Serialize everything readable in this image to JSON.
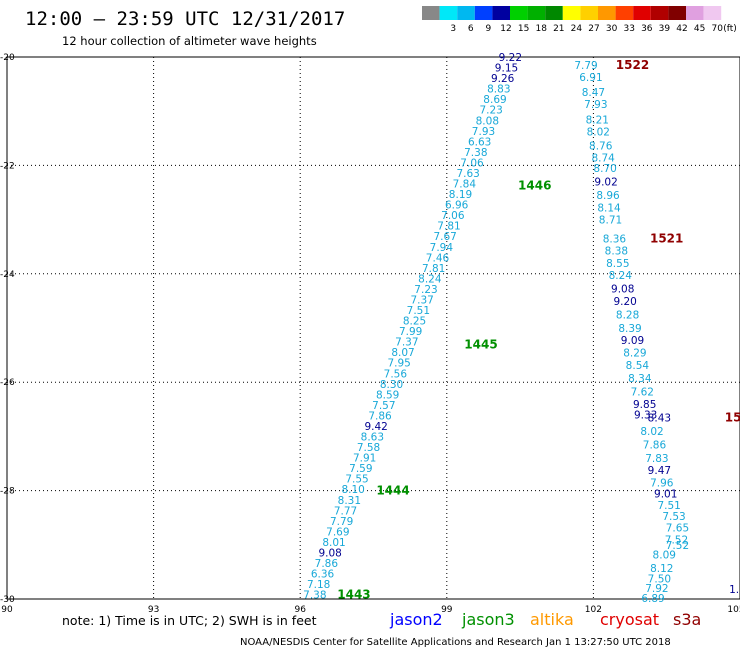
{
  "header": {
    "title": "12:00 – 23:59 UTC 12/31/2017",
    "subtitle": "12 hour collection of altimeter wave heights"
  },
  "legend": {
    "unit": "(ft)",
    "bins": [
      {
        "label": "",
        "color": "#888888"
      },
      {
        "label": "3",
        "color": "#00e8f8"
      },
      {
        "label": "6",
        "color": "#00b8f0"
      },
      {
        "label": "9",
        "color": "#0040ff"
      },
      {
        "label": "12",
        "color": "#0000a0"
      },
      {
        "label": "15",
        "color": "#00d000"
      },
      {
        "label": "18",
        "color": "#00b000"
      },
      {
        "label": "21",
        "color": "#008800"
      },
      {
        "label": "24",
        "color": "#ffff00"
      },
      {
        "label": "27",
        "color": "#ffd000"
      },
      {
        "label": "30",
        "color": "#ff9800"
      },
      {
        "label": "33",
        "color": "#ff4000"
      },
      {
        "label": "36",
        "color": "#e00000"
      },
      {
        "label": "39",
        "color": "#b00000"
      },
      {
        "label": "42",
        "color": "#800000"
      },
      {
        "label": "45",
        "color": "#e0a0e0"
      },
      {
        "label": "70",
        "color": "#f0c8f0"
      }
    ]
  },
  "footer": {
    "note": "note:  1) Time is in UTC; 2) SWH is in feet",
    "satellites": [
      {
        "name": "jason2",
        "color": "#0000ff"
      },
      {
        "name": "jason3",
        "color": "#009000"
      },
      {
        "name": "altika",
        "color": "#ff9900"
      },
      {
        "name": "cryosat",
        "color": "#e00000"
      },
      {
        "name": "s3a",
        "color": "#900000"
      }
    ],
    "credit": "NOAA/NESDIS Center for Satellite Applications and Research    Jan  1 13:27:50 UTC 2018"
  },
  "chart_data": {
    "type": "scatter",
    "xlim": [
      90,
      105
    ],
    "ylim": [
      -30,
      -20
    ],
    "x_ticks": [
      90,
      93,
      96,
      99,
      102,
      105
    ],
    "y_ticks": [
      -20,
      -22,
      -24,
      -26,
      -28,
      -30
    ],
    "x_tick_labels": [
      "90",
      "93",
      "96",
      "99",
      "102",
      "105"
    ],
    "y_tick_labels": [
      "-20",
      "-22",
      "-24",
      "-26",
      "-28",
      "-30"
    ],
    "grid": true,
    "colors": {
      "cyan": "#18a8d8",
      "navy": "#000090"
    },
    "tracks": [
      {
        "satellite": "jason3",
        "pass_labels": [
          {
            "text": "1446",
            "lon": 100.8,
            "lat": -22.37
          },
          {
            "text": "1445",
            "lon": 99.7,
            "lat": -25.3
          },
          {
            "text": "1444",
            "lon": 97.9,
            "lat": -28.0
          },
          {
            "text": "1443",
            "lon": 97.1,
            "lat": -29.92
          }
        ],
        "start": {
          "lon": 100.3,
          "lat": -20.0
        },
        "end": {
          "lon": 96.3,
          "lat": -29.92
        },
        "values": [
          "9.22",
          "9.15",
          "9.26",
          "8.83",
          "8.69",
          "7.23",
          "8.08",
          "7.93",
          "6.63",
          "7.38",
          "7.06",
          "7.63",
          "7.84",
          "8.19",
          "6.96",
          "7.06",
          "7.81",
          "7.67",
          "7.94",
          "7.46",
          "7.81",
          "8.24",
          "7.23",
          "7.37",
          "7.51",
          "8.25",
          "7.99",
          "7.37",
          "8.07",
          "7.95",
          "7.56",
          "8.30",
          "8.59",
          "7.57",
          "7.86",
          "9.42",
          "8.63",
          "7.58",
          "7.91",
          "7.59",
          "7.55",
          "8.10",
          "8.31",
          "7.77",
          "7.79",
          "7.69",
          "8.01",
          "9.08",
          "7.86",
          "6.36",
          "7.18",
          "7.38"
        ],
        "value_colors": [
          "n",
          "n",
          "n",
          "c",
          "c",
          "c",
          "c",
          "c",
          "c",
          "c",
          "c",
          "c",
          "c",
          "c",
          "c",
          "c",
          "c",
          "c",
          "c",
          "c",
          "c",
          "c",
          "c",
          "c",
          "c",
          "c",
          "c",
          "c",
          "c",
          "c",
          "c",
          "c",
          "c",
          "c",
          "c",
          "n",
          "c",
          "c",
          "c",
          "c",
          "c",
          "c",
          "c",
          "c",
          "c",
          "c",
          "c",
          "n",
          "c",
          "c",
          "c",
          "c"
        ]
      },
      {
        "satellite": "s3a",
        "pass_labels": [
          {
            "text": "1522",
            "lon": 102.8,
            "lat": -20.15
          },
          {
            "text": "1521",
            "lon": 103.5,
            "lat": -23.35
          },
          {
            "text": "15",
            "lon": 104.86,
            "lat": -26.65
          }
        ],
        "values": [
          {
            "v": "7.79",
            "lon": 101.85,
            "lat": -20.15,
            "c": "c"
          },
          {
            "v": "6.91",
            "lon": 101.95,
            "lat": -20.37,
            "c": "c"
          },
          {
            "v": "8.47",
            "lon": 102.0,
            "lat": -20.65,
            "c": "c"
          },
          {
            "v": "7.93",
            "lon": 102.05,
            "lat": -20.87,
            "c": "c"
          },
          {
            "v": "8.21",
            "lon": 102.08,
            "lat": -21.15,
            "c": "c"
          },
          {
            "v": "8.02",
            "lon": 102.1,
            "lat": -21.37,
            "c": "c"
          },
          {
            "v": "8.76",
            "lon": 102.15,
            "lat": -21.63,
            "c": "c"
          },
          {
            "v": "8.74",
            "lon": 102.2,
            "lat": -21.85,
            "c": "c"
          },
          {
            "v": "8.70",
            "lon": 102.24,
            "lat": -22.05,
            "c": "c"
          },
          {
            "v": "9.02",
            "lon": 102.26,
            "lat": -22.3,
            "c": "n"
          },
          {
            "v": "8.96",
            "lon": 102.3,
            "lat": -22.55,
            "c": "c"
          },
          {
            "v": "8.14",
            "lon": 102.32,
            "lat": -22.78,
            "c": "c"
          },
          {
            "v": "8.71",
            "lon": 102.35,
            "lat": -23.0,
            "c": "c"
          },
          {
            "v": "8.36",
            "lon": 102.43,
            "lat": -23.35,
            "c": "c"
          },
          {
            "v": "8.38",
            "lon": 102.47,
            "lat": -23.57,
            "c": "c"
          },
          {
            "v": "8.55",
            "lon": 102.5,
            "lat": -23.8,
            "c": "c"
          },
          {
            "v": "8.24",
            "lon": 102.55,
            "lat": -24.02,
            "c": "c"
          },
          {
            "v": "9.08",
            "lon": 102.6,
            "lat": -24.27,
            "c": "n"
          },
          {
            "v": "9.20",
            "lon": 102.65,
            "lat": -24.5,
            "c": "n"
          },
          {
            "v": "8.28",
            "lon": 102.7,
            "lat": -24.75,
            "c": "c"
          },
          {
            "v": "8.39",
            "lon": 102.75,
            "lat": -25.0,
            "c": "c"
          },
          {
            "v": "9.09",
            "lon": 102.8,
            "lat": -25.22,
            "c": "n"
          },
          {
            "v": "8.29",
            "lon": 102.85,
            "lat": -25.45,
            "c": "c"
          },
          {
            "v": "8.54",
            "lon": 102.9,
            "lat": -25.68,
            "c": "c"
          },
          {
            "v": "8.34",
            "lon": 102.95,
            "lat": -25.92,
            "c": "c"
          },
          {
            "v": "7.62",
            "lon": 103.0,
            "lat": -26.17,
            "c": "c"
          },
          {
            "v": "9.85",
            "lon": 103.05,
            "lat": -26.4,
            "c": "n"
          },
          {
            "v": "9.33",
            "lon": 103.07,
            "lat": -26.6,
            "c": "n"
          },
          {
            "v": "8.43",
            "lon": 103.35,
            "lat": -26.65,
            "c": "n"
          },
          {
            "v": "8.02",
            "lon": 103.2,
            "lat": -26.9,
            "c": "c"
          },
          {
            "v": "7.86",
            "lon": 103.25,
            "lat": -27.15,
            "c": "c"
          },
          {
            "v": "7.83",
            "lon": 103.3,
            "lat": -27.4,
            "c": "c"
          },
          {
            "v": "9.47",
            "lon": 103.35,
            "lat": -27.62,
            "c": "n"
          },
          {
            "v": "7.96",
            "lon": 103.4,
            "lat": -27.85,
            "c": "c"
          },
          {
            "v": "9.01",
            "lon": 103.48,
            "lat": -28.05,
            "c": "n"
          },
          {
            "v": "7.51",
            "lon": 103.55,
            "lat": -28.27,
            "c": "c"
          },
          {
            "v": "7.53",
            "lon": 103.65,
            "lat": -28.47,
            "c": "c"
          },
          {
            "v": "7.65",
            "lon": 103.72,
            "lat": -28.68,
            "c": "c"
          },
          {
            "v": "7.52",
            "lon": 103.7,
            "lat": -28.9,
            "c": "c"
          },
          {
            "v": "7.52",
            "lon": 103.72,
            "lat": -29.0,
            "c": "c"
          },
          {
            "v": "8.09",
            "lon": 103.45,
            "lat": -29.18,
            "c": "c"
          },
          {
            "v": "8.12",
            "lon": 103.4,
            "lat": -29.43,
            "c": "c"
          },
          {
            "v": "7.50",
            "lon": 103.35,
            "lat": -29.62,
            "c": "c"
          },
          {
            "v": "7.92",
            "lon": 103.3,
            "lat": -29.8,
            "c": "c"
          },
          {
            "v": "6.89",
            "lon": 103.22,
            "lat": -29.98,
            "c": "c"
          },
          {
            "v": "1.",
            "lon": 104.88,
            "lat": -29.82,
            "c": "n"
          }
        ]
      }
    ]
  }
}
